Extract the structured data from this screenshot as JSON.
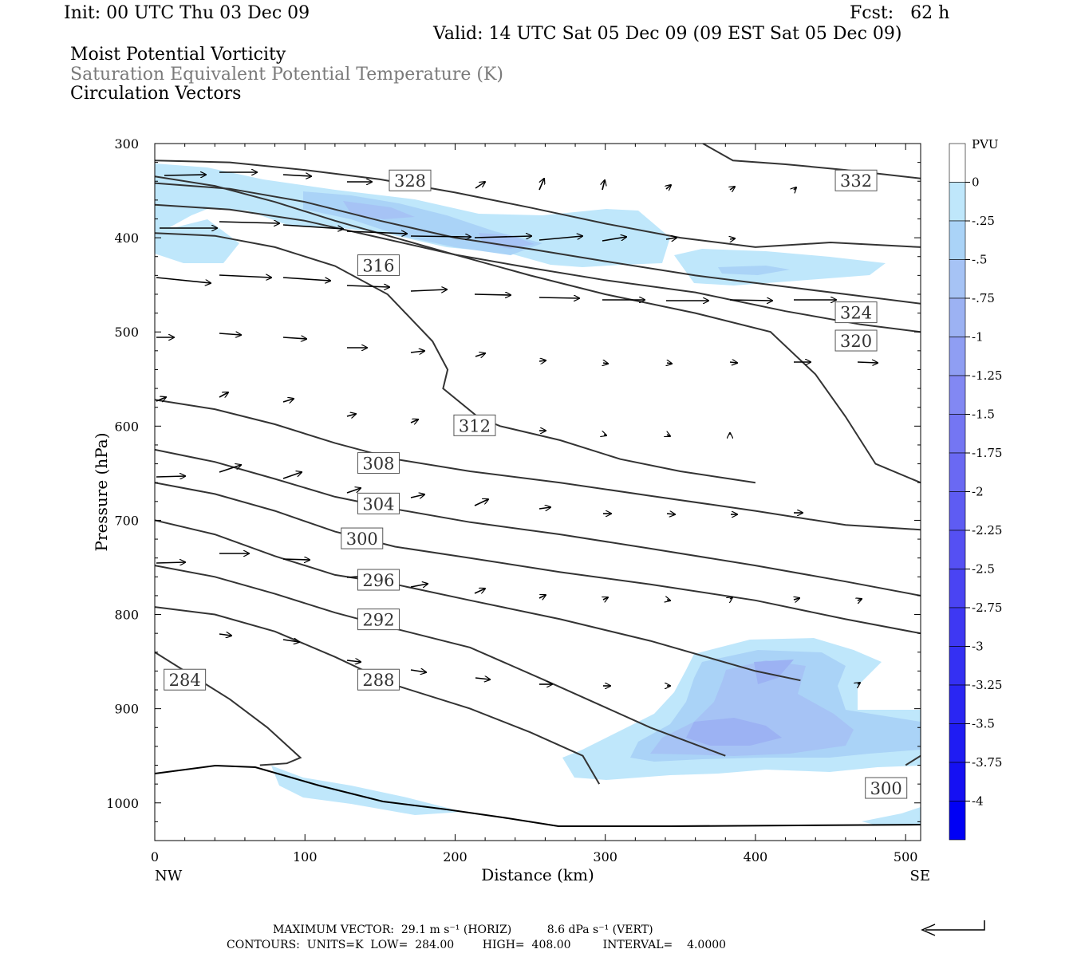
{
  "header": {
    "init": "Init: 00 UTC Thu 03 Dec 09",
    "fcst": "Fcst:   62 h",
    "valid": "Valid: 14 UTC Sat 05 Dec 09 (09 EST Sat 05 Dec 09)",
    "line1": "Moist Potential Vorticity",
    "line2": "Saturation Equivalent Potential Temperature (K)",
    "line3": "Circulation Vectors"
  },
  "footer": {
    "max_vector": "MAXIMUM VECTOR:  29.1 m s⁻¹ (HORIZ)          8.6 dPa s⁻¹ (VERT)",
    "contours": "CONTOURS:  UNITS=K  LOW=  284.00        HIGH=  408.00         INTERVAL=    4.0000"
  },
  "colors": {
    "pv_fill": [
      "#ffffff",
      "#bfe7fb",
      "#aad3f7",
      "#a6c3f5",
      "#9cb2f3",
      "#8f9ef3",
      "#8288f3",
      "#7476f3",
      "#6a69f3",
      "#5e5cf3",
      "#5550f3",
      "#4a44f3",
      "#3e38f3",
      "#3430f3",
      "#2a26f3",
      "#1f1cf3",
      "#1510f3",
      "#0000f5"
    ],
    "contour": "#333333"
  },
  "chart_data": {
    "type": "contour",
    "xlabel": "Distance (km)",
    "ylabel": "Pressure (hPa)",
    "xlim": [
      0,
      510
    ],
    "ylim": [
      1040,
      300
    ],
    "x_ticks": [
      "0",
      "100",
      "200",
      "300",
      "400",
      "500"
    ],
    "x_tick_values": [
      0,
      100,
      200,
      300,
      400,
      500
    ],
    "y_ticks": [
      "300",
      "400",
      "500",
      "600",
      "700",
      "800",
      "900",
      "1000"
    ],
    "y_tick_values": [
      300,
      400,
      500,
      600,
      700,
      800,
      900,
      1000
    ],
    "left_end_label": "NW",
    "right_end_label": "SE",
    "colorbar": {
      "unit": "PVU",
      "labels": [
        "0",
        "-.25",
        "-.5",
        "-.75",
        "-1",
        "-1.25",
        "-1.5",
        "-1.75",
        "-2",
        "-2.25",
        "-2.5",
        "-2.75",
        "-3",
        "-3.25",
        "-3.5",
        "-3.75",
        "-4"
      ]
    },
    "contours": [
      {
        "label": "284",
        "label_at": [
          20,
          870
        ],
        "points": [
          [
            0,
            840
          ],
          [
            20,
            860
          ],
          [
            50,
            890
          ],
          [
            75,
            920
          ],
          [
            97,
            952
          ],
          [
            88,
            958
          ],
          [
            70,
            960
          ]
        ]
      },
      {
        "label": "288",
        "label_at": [
          149,
          870
        ],
        "points": [
          [
            0,
            792
          ],
          [
            40,
            800
          ],
          [
            80,
            818
          ],
          [
            120,
            845
          ],
          [
            160,
            875
          ],
          [
            210,
            900
          ],
          [
            250,
            925
          ],
          [
            285,
            950
          ],
          [
            296,
            980
          ]
        ]
      },
      {
        "label": "292",
        "label_at": [
          149,
          806
        ],
        "points": [
          [
            0,
            748
          ],
          [
            40,
            760
          ],
          [
            80,
            778
          ],
          [
            120,
            798
          ],
          [
            160,
            815
          ],
          [
            210,
            835
          ],
          [
            260,
            870
          ],
          [
            330,
            920
          ],
          [
            380,
            950
          ]
        ]
      },
      {
        "label": "296",
        "label_at": [
          149,
          764
        ],
        "points": [
          [
            0,
            700
          ],
          [
            40,
            715
          ],
          [
            80,
            738
          ],
          [
            120,
            758
          ],
          [
            160,
            768
          ],
          [
            210,
            785
          ],
          [
            270,
            805
          ],
          [
            330,
            828
          ],
          [
            400,
            860
          ],
          [
            430,
            870
          ]
        ]
      },
      {
        "label": "300",
        "label_at": [
          138,
          720
        ],
        "points": [
          [
            0,
            660
          ],
          [
            40,
            672
          ],
          [
            80,
            690
          ],
          [
            120,
            712
          ],
          [
            160,
            728
          ],
          [
            210,
            740
          ],
          [
            270,
            755
          ],
          [
            330,
            768
          ],
          [
            400,
            785
          ],
          [
            460,
            805
          ],
          [
            510,
            820
          ]
        ]
      },
      {
        "label": "304",
        "label_at": [
          149,
          683
        ],
        "points": [
          [
            0,
            625
          ],
          [
            40,
            638
          ],
          [
            80,
            656
          ],
          [
            120,
            675
          ],
          [
            160,
            688
          ],
          [
            210,
            702
          ],
          [
            270,
            715
          ],
          [
            330,
            730
          ],
          [
            400,
            748
          ],
          [
            460,
            765
          ],
          [
            510,
            780
          ]
        ]
      },
      {
        "label": "308",
        "label_at": [
          149,
          640
        ],
        "points": [
          [
            0,
            572
          ],
          [
            40,
            582
          ],
          [
            80,
            598
          ],
          [
            120,
            618
          ],
          [
            160,
            635
          ],
          [
            210,
            648
          ],
          [
            270,
            660
          ],
          [
            330,
            674
          ],
          [
            400,
            690
          ],
          [
            460,
            705
          ],
          [
            510,
            710
          ]
        ]
      },
      {
        "label": "312",
        "label_at": [
          213,
          600
        ],
        "points": [
          [
            0,
            395
          ],
          [
            40,
            398
          ],
          [
            80,
            410
          ],
          [
            120,
            430
          ],
          [
            155,
            460
          ],
          [
            185,
            510
          ],
          [
            195,
            540
          ],
          [
            192,
            560
          ],
          [
            215,
            590
          ],
          [
            230,
            600
          ],
          [
            270,
            615
          ],
          [
            310,
            635
          ],
          [
            350,
            648
          ],
          [
            400,
            660
          ]
        ]
      },
      {
        "label": "316",
        "label_at": [
          149,
          430
        ],
        "points": [
          [
            0,
            335
          ],
          [
            40,
            345
          ],
          [
            80,
            362
          ],
          [
            120,
            382
          ],
          [
            160,
            400
          ],
          [
            200,
            418
          ],
          [
            250,
            440
          ],
          [
            300,
            460
          ],
          [
            360,
            480
          ],
          [
            410,
            500
          ],
          [
            440,
            545
          ],
          [
            460,
            590
          ],
          [
            480,
            640
          ],
          [
            510,
            660
          ]
        ]
      },
      {
        "label": "320",
        "label_at": [
          467,
          510
        ],
        "points": [
          [
            0,
            365
          ],
          [
            50,
            370
          ],
          [
            100,
            382
          ],
          [
            150,
            400
          ],
          [
            200,
            418
          ],
          [
            250,
            432
          ],
          [
            300,
            445
          ],
          [
            360,
            458
          ],
          [
            420,
            478
          ],
          [
            470,
            492
          ],
          [
            510,
            500
          ]
        ]
      },
      {
        "label": "324",
        "label_at": [
          467,
          480
        ],
        "points": [
          [
            0,
            342
          ],
          [
            50,
            348
          ],
          [
            100,
            362
          ],
          [
            150,
            382
          ],
          [
            200,
            400
          ],
          [
            250,
            412
          ],
          [
            300,
            425
          ],
          [
            360,
            440
          ],
          [
            420,
            452
          ],
          [
            470,
            462
          ],
          [
            510,
            470
          ]
        ]
      },
      {
        "label": "328",
        "label_at": [
          170,
          340
        ],
        "points": [
          [
            0,
            318
          ],
          [
            50,
            320
          ],
          [
            100,
            328
          ],
          [
            150,
            338
          ],
          [
            200,
            352
          ],
          [
            250,
            368
          ],
          [
            300,
            385
          ],
          [
            350,
            400
          ],
          [
            400,
            410
          ],
          [
            450,
            405
          ],
          [
            510,
            410
          ]
        ]
      },
      {
        "label": "332",
        "label_at": [
          467,
          340
        ],
        "points": [
          [
            365,
            300
          ],
          [
            385,
            318
          ],
          [
            420,
            322
          ],
          [
            460,
            328
          ],
          [
            510,
            337
          ]
        ]
      },
      {
        "label": "300",
        "label_at": [
          487,
          985
        ],
        "points": [
          [
            500,
            960
          ],
          [
            510,
            950
          ]
        ]
      }
    ]
  }
}
